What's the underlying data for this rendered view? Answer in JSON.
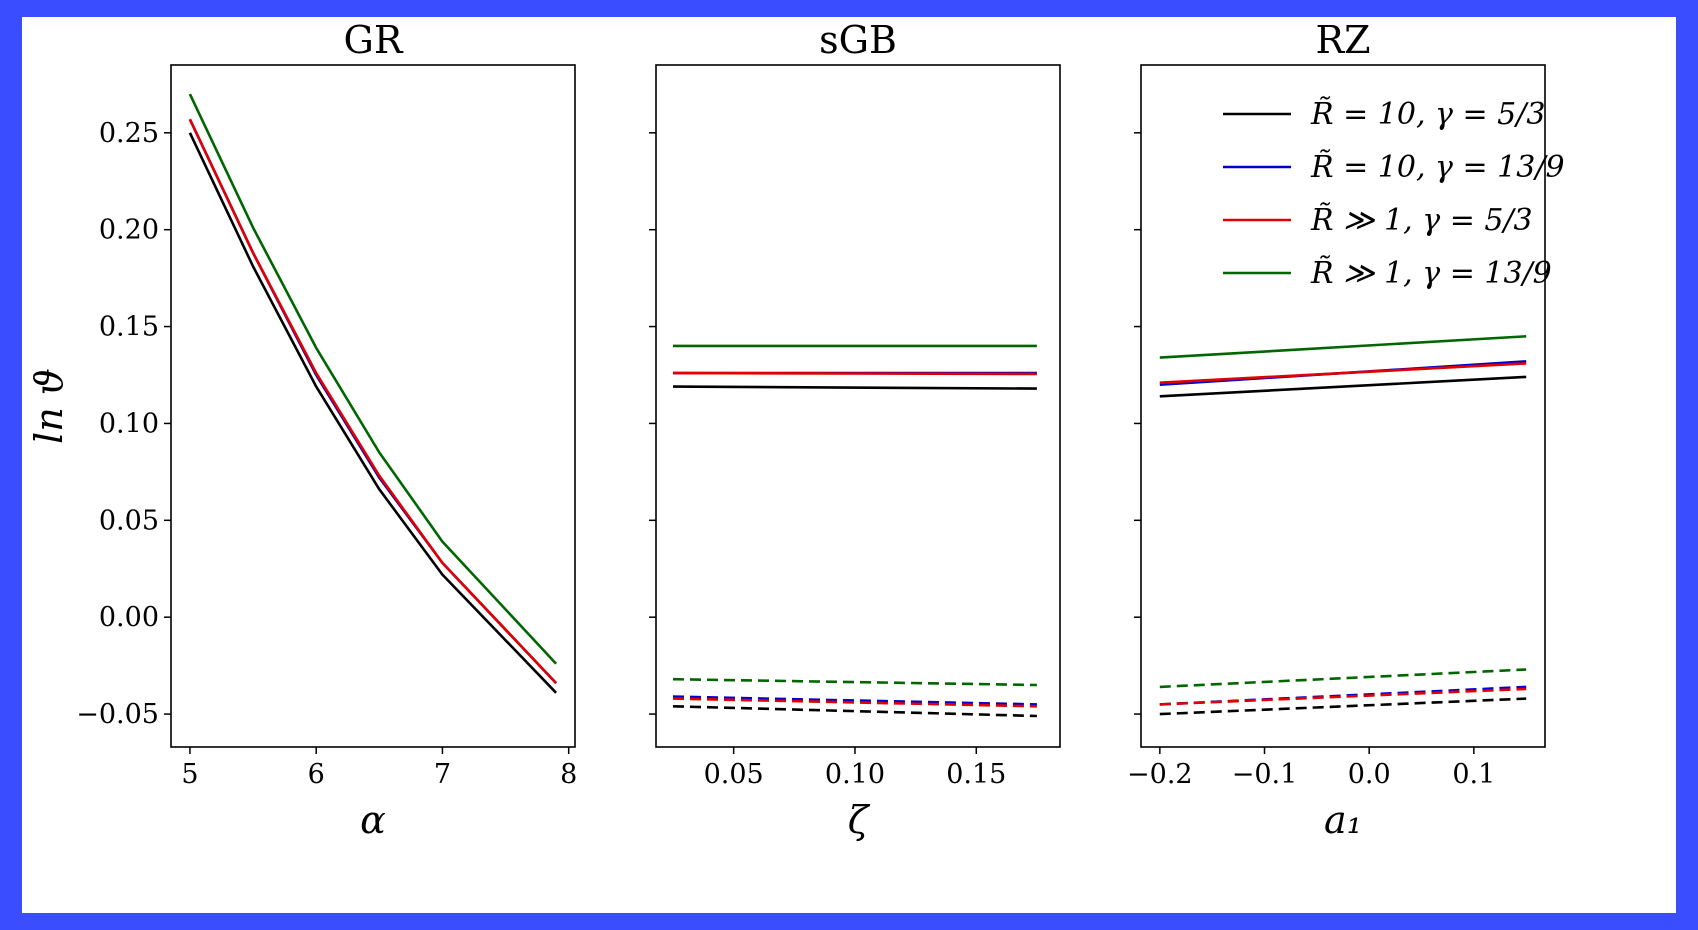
{
  "chart_data": [
    {
      "type": "line",
      "title": "GR",
      "xlabel": "α",
      "ylabel": "ln ϑ",
      "xlim": [
        4.85,
        8.05
      ],
      "ylim": [
        -0.067,
        0.285
      ],
      "xticks": [
        5,
        6,
        7,
        8
      ],
      "xtick_labels": [
        "5",
        "6",
        "7",
        "8"
      ],
      "yticks": [
        -0.05,
        0,
        0.05,
        0.1,
        0.15,
        0.2,
        0.25
      ],
      "ytick_labels": [
        "−0.05",
        "0.00",
        "0.05",
        "0.10",
        "0.15",
        "0.20",
        "0.25"
      ],
      "show_ytick_labels": true,
      "series": [
        {
          "color": "#000000",
          "dash": false,
          "x": [
            5,
            5.5,
            6,
            6.5,
            7,
            7.9
          ],
          "y": [
            0.25,
            0.181,
            0.119,
            0.066,
            0.022,
            -0.039
          ]
        },
        {
          "color": "#0000cc",
          "dash": false,
          "x": [
            5,
            5.5,
            6,
            6.5,
            7,
            7.9
          ],
          "y": [
            0.257,
            0.188,
            0.125,
            0.072,
            0.028,
            -0.034
          ]
        },
        {
          "color": "#e00000",
          "dash": false,
          "x": [
            5,
            5.5,
            6,
            6.5,
            7,
            7.9
          ],
          "y": [
            0.257,
            0.188,
            0.126,
            0.073,
            0.028,
            -0.034
          ]
        },
        {
          "color": "#006600",
          "dash": false,
          "x": [
            5,
            5.5,
            6,
            6.5,
            7,
            7.9
          ],
          "y": [
            0.27,
            0.201,
            0.139,
            0.085,
            0.039,
            -0.024
          ]
        }
      ]
    },
    {
      "type": "line",
      "title": "sGB",
      "xlabel": "ζ",
      "ylabel": "",
      "xlim": [
        0.018,
        0.1845
      ],
      "ylim": [
        -0.067,
        0.285
      ],
      "xticks": [
        0.05,
        0.1,
        0.15
      ],
      "xtick_labels": [
        "0.05",
        "0.10",
        "0.15"
      ],
      "yticks": [
        -0.05,
        0,
        0.05,
        0.1,
        0.15,
        0.2,
        0.25
      ],
      "ytick_labels": [],
      "show_ytick_labels": false,
      "series": [
        {
          "color": "#000000",
          "dash": false,
          "x": [
            0.025,
            0.175
          ],
          "y": [
            0.119,
            0.118
          ]
        },
        {
          "color": "#0000cc",
          "dash": false,
          "x": [
            0.025,
            0.175
          ],
          "y": [
            0.126,
            0.126
          ]
        },
        {
          "color": "#e00000",
          "dash": false,
          "x": [
            0.025,
            0.175
          ],
          "y": [
            0.126,
            0.1255
          ]
        },
        {
          "color": "#006600",
          "dash": false,
          "x": [
            0.025,
            0.175
          ],
          "y": [
            0.14,
            0.14
          ]
        },
        {
          "color": "#000000",
          "dash": true,
          "x": [
            0.025,
            0.175
          ],
          "y": [
            -0.046,
            -0.051
          ]
        },
        {
          "color": "#0000cc",
          "dash": true,
          "x": [
            0.025,
            0.175
          ],
          "y": [
            -0.041,
            -0.045
          ]
        },
        {
          "color": "#e00000",
          "dash": true,
          "x": [
            0.025,
            0.175
          ],
          "y": [
            -0.042,
            -0.046
          ]
        },
        {
          "color": "#006600",
          "dash": true,
          "x": [
            0.025,
            0.175
          ],
          "y": [
            -0.032,
            -0.035
          ]
        }
      ]
    },
    {
      "type": "line",
      "title": "RZ",
      "xlabel": "a₁",
      "ylabel": "",
      "xlim": [
        -0.218,
        0.168
      ],
      "ylim": [
        -0.067,
        0.285
      ],
      "xticks": [
        -0.2,
        -0.1,
        0,
        0.1
      ],
      "xtick_labels": [
        "−0.2",
        "−0.1",
        "0.0",
        "0.1"
      ],
      "yticks": [
        -0.05,
        0,
        0.05,
        0.1,
        0.15,
        0.2,
        0.25
      ],
      "ytick_labels": [],
      "show_ytick_labels": false,
      "legend_position": "top-right",
      "legend": [
        {
          "label": "R̃ = 10, γ = 5/3",
          "color": "#000000"
        },
        {
          "label": "R̃ = 10, γ = 13/9",
          "color": "#0000cc"
        },
        {
          "label": "R̃ ≫ 1, γ = 5/3",
          "color": "#e00000"
        },
        {
          "label": "R̃ ≫ 1, γ = 13/9",
          "color": "#006600"
        }
      ],
      "series": [
        {
          "color": "#000000",
          "dash": false,
          "x": [
            -0.2,
            0.15
          ],
          "y": [
            0.114,
            0.124
          ]
        },
        {
          "color": "#0000cc",
          "dash": false,
          "x": [
            -0.2,
            0.15
          ],
          "y": [
            0.12,
            0.132
          ]
        },
        {
          "color": "#e00000",
          "dash": false,
          "x": [
            -0.2,
            0.15
          ],
          "y": [
            0.121,
            0.131
          ]
        },
        {
          "color": "#006600",
          "dash": false,
          "x": [
            -0.2,
            0.15
          ],
          "y": [
            0.134,
            0.145
          ]
        },
        {
          "color": "#000000",
          "dash": true,
          "x": [
            -0.2,
            0.15
          ],
          "y": [
            -0.05,
            -0.042
          ]
        },
        {
          "color": "#0000cc",
          "dash": true,
          "x": [
            -0.2,
            0.15
          ],
          "y": [
            -0.045,
            -0.036
          ]
        },
        {
          "color": "#e00000",
          "dash": true,
          "x": [
            -0.2,
            0.15
          ],
          "y": [
            -0.045,
            -0.037
          ]
        },
        {
          "color": "#006600",
          "dash": true,
          "x": [
            -0.2,
            0.15
          ],
          "y": [
            -0.036,
            -0.027
          ]
        }
      ]
    }
  ]
}
